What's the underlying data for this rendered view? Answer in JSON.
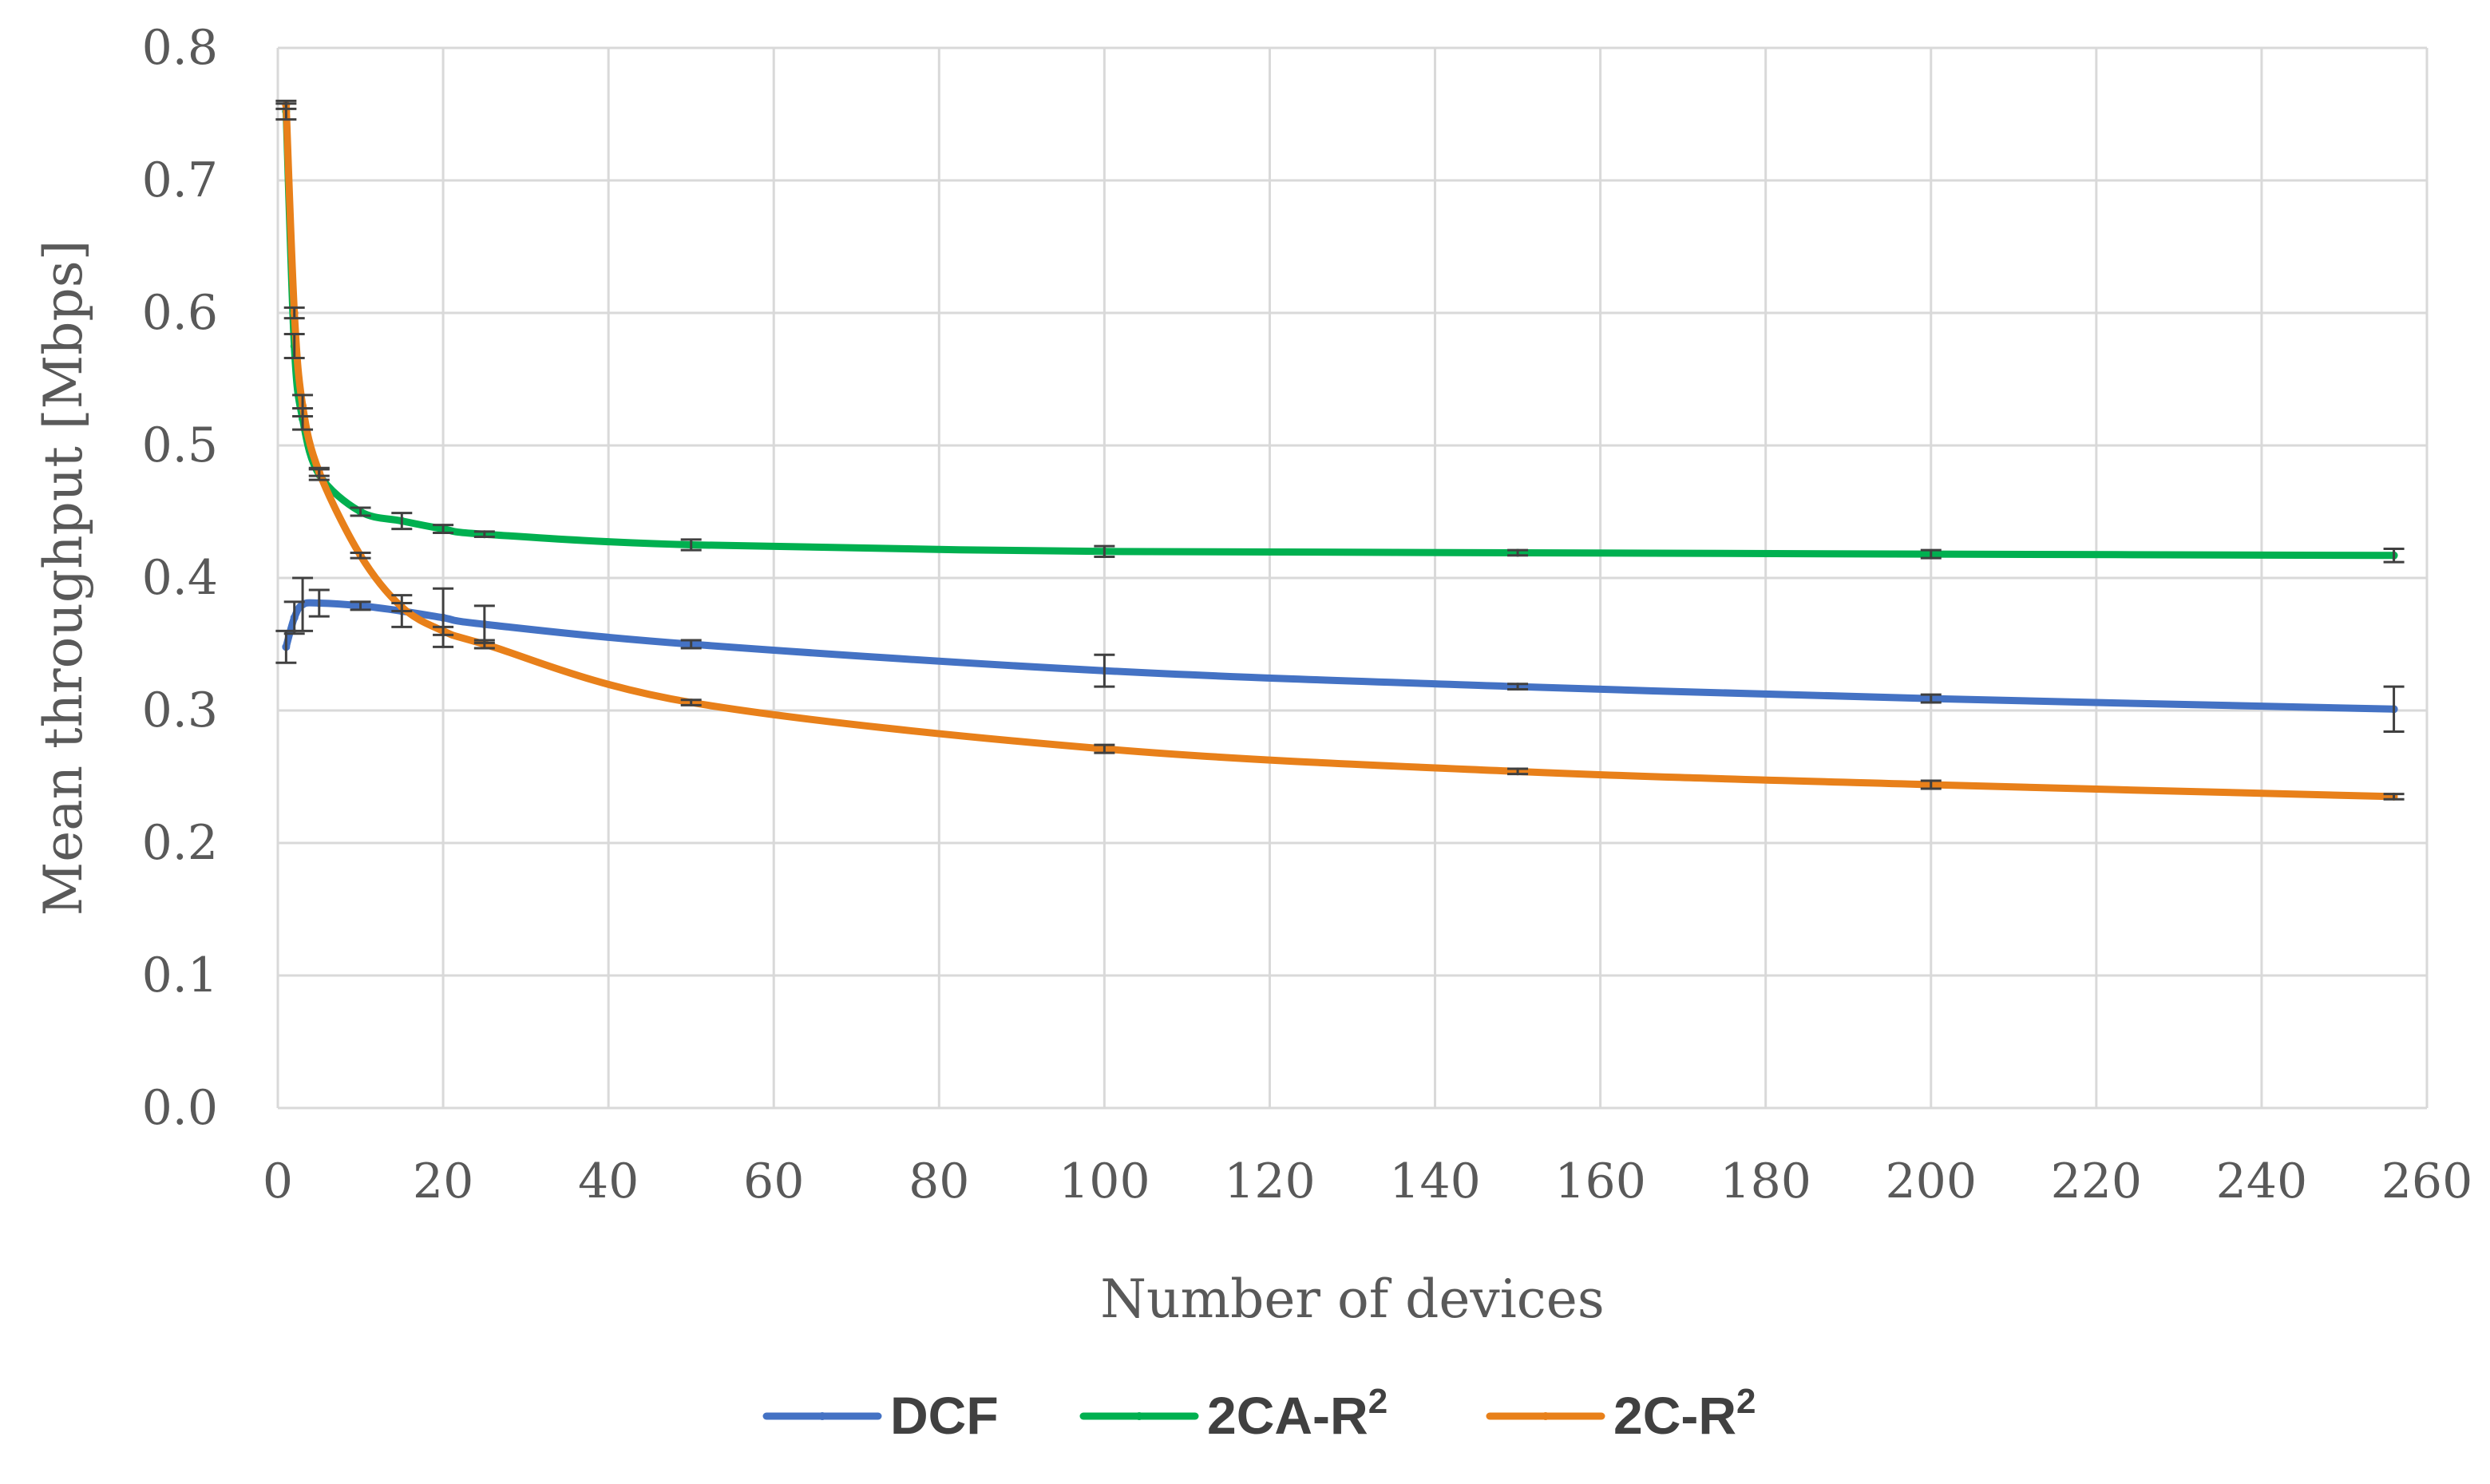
{
  "chart_data": {
    "type": "line",
    "title": "",
    "xlabel": "Number of devices",
    "ylabel": "Mean throughput [Mbps]",
    "xlim": [
      0,
      260
    ],
    "ylim": [
      0,
      0.8
    ],
    "xticks": [
      0,
      20,
      40,
      60,
      80,
      100,
      120,
      140,
      160,
      180,
      200,
      220,
      240,
      260
    ],
    "xtick_labels": [
      "0",
      "20",
      "40",
      "60",
      "80",
      "100",
      "120",
      "140",
      "160",
      "180",
      "200",
      "220",
      "240",
      "260"
    ],
    "yticks": [
      0,
      0.1,
      0.2,
      0.3,
      0.4,
      0.5,
      0.6,
      0.7,
      0.8
    ],
    "ytick_labels": [
      "0.0",
      "0.1",
      "0.2",
      "0.3",
      "0.4",
      "0.5",
      "0.6",
      "0.7",
      "0.8"
    ],
    "grid": true,
    "legend_position": "bottom",
    "smooth": true,
    "series": [
      {
        "name": "DCF",
        "legend_main": "DCF",
        "legend_sup": "",
        "color": "#4472c4",
        "x": [
          1,
          2,
          3,
          5,
          10,
          15,
          20,
          25,
          50,
          100,
          150,
          200,
          256
        ],
        "y": [
          0.348,
          0.37,
          0.38,
          0.381,
          0.379,
          0.375,
          0.37,
          0.365,
          0.35,
          0.33,
          0.318,
          0.309,
          0.301
        ],
        "err": [
          0.012,
          0.012,
          0.02,
          0.01,
          0.003,
          0.012,
          0.022,
          0.014,
          0.003,
          0.012,
          0.002,
          0.003,
          0.017
        ]
      },
      {
        "name": "2CA-R2",
        "legend_main": "2CA-R",
        "legend_sup": "2",
        "color": "#00b050",
        "x": [
          1,
          2,
          3,
          5,
          10,
          15,
          20,
          25,
          50,
          100,
          150,
          200,
          256
        ],
        "y": [
          0.752,
          0.575,
          0.52,
          0.478,
          0.45,
          0.443,
          0.437,
          0.433,
          0.425,
          0.42,
          0.419,
          0.418,
          0.417
        ],
        "err": [
          0.006,
          0.009,
          0.008,
          0.004,
          0.003,
          0.006,
          0.003,
          0.002,
          0.004,
          0.004,
          0.002,
          0.003,
          0.005
        ]
      },
      {
        "name": "2C-R2",
        "legend_main": "2C-R",
        "legend_sup": "2",
        "color": "#e8801a",
        "x": [
          1,
          2,
          3,
          5,
          10,
          15,
          20,
          25,
          50,
          100,
          150,
          200,
          256
        ],
        "y": [
          0.757,
          0.6,
          0.53,
          0.48,
          0.417,
          0.378,
          0.36,
          0.35,
          0.306,
          0.271,
          0.254,
          0.244,
          0.235
        ],
        "err": [
          0.003,
          0.004,
          0.008,
          0.003,
          0.002,
          0.003,
          0.003,
          0.003,
          0.002,
          0.003,
          0.002,
          0.003,
          0.002
        ]
      }
    ]
  }
}
